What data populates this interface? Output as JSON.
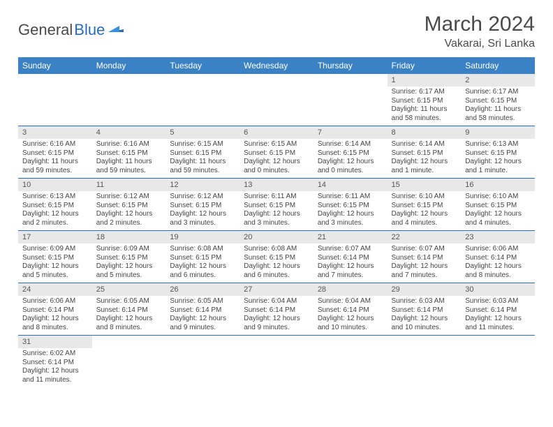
{
  "logo": {
    "text1": "General",
    "text2": "Blue"
  },
  "title": "March 2024",
  "location": "Vakarai, Sri Lanka",
  "colors": {
    "header_bg": "#3b82c4",
    "header_text": "#ffffff",
    "daynum_bg": "#e8e8e8",
    "row_border": "#2a6db5",
    "logo_gray": "#4a4a4a",
    "logo_blue": "#2a6db5",
    "body_text": "#444444"
  },
  "typography": {
    "title_fontsize": 30,
    "location_fontsize": 16,
    "dayheader_fontsize": 12,
    "daynum_fontsize": 11,
    "content_fontsize": 10
  },
  "day_headers": [
    "Sunday",
    "Monday",
    "Tuesday",
    "Wednesday",
    "Thursday",
    "Friday",
    "Saturday"
  ],
  "weeks": [
    [
      {
        "n": "",
        "sr": "",
        "ss": "",
        "dl": ""
      },
      {
        "n": "",
        "sr": "",
        "ss": "",
        "dl": ""
      },
      {
        "n": "",
        "sr": "",
        "ss": "",
        "dl": ""
      },
      {
        "n": "",
        "sr": "",
        "ss": "",
        "dl": ""
      },
      {
        "n": "",
        "sr": "",
        "ss": "",
        "dl": ""
      },
      {
        "n": "1",
        "sr": "Sunrise: 6:17 AM",
        "ss": "Sunset: 6:15 PM",
        "dl": "Daylight: 11 hours and 58 minutes."
      },
      {
        "n": "2",
        "sr": "Sunrise: 6:17 AM",
        "ss": "Sunset: 6:15 PM",
        "dl": "Daylight: 11 hours and 58 minutes."
      }
    ],
    [
      {
        "n": "3",
        "sr": "Sunrise: 6:16 AM",
        "ss": "Sunset: 6:15 PM",
        "dl": "Daylight: 11 hours and 59 minutes."
      },
      {
        "n": "4",
        "sr": "Sunrise: 6:16 AM",
        "ss": "Sunset: 6:15 PM",
        "dl": "Daylight: 11 hours and 59 minutes."
      },
      {
        "n": "5",
        "sr": "Sunrise: 6:15 AM",
        "ss": "Sunset: 6:15 PM",
        "dl": "Daylight: 11 hours and 59 minutes."
      },
      {
        "n": "6",
        "sr": "Sunrise: 6:15 AM",
        "ss": "Sunset: 6:15 PM",
        "dl": "Daylight: 12 hours and 0 minutes."
      },
      {
        "n": "7",
        "sr": "Sunrise: 6:14 AM",
        "ss": "Sunset: 6:15 PM",
        "dl": "Daylight: 12 hours and 0 minutes."
      },
      {
        "n": "8",
        "sr": "Sunrise: 6:14 AM",
        "ss": "Sunset: 6:15 PM",
        "dl": "Daylight: 12 hours and 1 minute."
      },
      {
        "n": "9",
        "sr": "Sunrise: 6:13 AM",
        "ss": "Sunset: 6:15 PM",
        "dl": "Daylight: 12 hours and 1 minute."
      }
    ],
    [
      {
        "n": "10",
        "sr": "Sunrise: 6:13 AM",
        "ss": "Sunset: 6:15 PM",
        "dl": "Daylight: 12 hours and 2 minutes."
      },
      {
        "n": "11",
        "sr": "Sunrise: 6:12 AM",
        "ss": "Sunset: 6:15 PM",
        "dl": "Daylight: 12 hours and 2 minutes."
      },
      {
        "n": "12",
        "sr": "Sunrise: 6:12 AM",
        "ss": "Sunset: 6:15 PM",
        "dl": "Daylight: 12 hours and 3 minutes."
      },
      {
        "n": "13",
        "sr": "Sunrise: 6:11 AM",
        "ss": "Sunset: 6:15 PM",
        "dl": "Daylight: 12 hours and 3 minutes."
      },
      {
        "n": "14",
        "sr": "Sunrise: 6:11 AM",
        "ss": "Sunset: 6:15 PM",
        "dl": "Daylight: 12 hours and 3 minutes."
      },
      {
        "n": "15",
        "sr": "Sunrise: 6:10 AM",
        "ss": "Sunset: 6:15 PM",
        "dl": "Daylight: 12 hours and 4 minutes."
      },
      {
        "n": "16",
        "sr": "Sunrise: 6:10 AM",
        "ss": "Sunset: 6:15 PM",
        "dl": "Daylight: 12 hours and 4 minutes."
      }
    ],
    [
      {
        "n": "17",
        "sr": "Sunrise: 6:09 AM",
        "ss": "Sunset: 6:15 PM",
        "dl": "Daylight: 12 hours and 5 minutes."
      },
      {
        "n": "18",
        "sr": "Sunrise: 6:09 AM",
        "ss": "Sunset: 6:15 PM",
        "dl": "Daylight: 12 hours and 5 minutes."
      },
      {
        "n": "19",
        "sr": "Sunrise: 6:08 AM",
        "ss": "Sunset: 6:15 PM",
        "dl": "Daylight: 12 hours and 6 minutes."
      },
      {
        "n": "20",
        "sr": "Sunrise: 6:08 AM",
        "ss": "Sunset: 6:15 PM",
        "dl": "Daylight: 12 hours and 6 minutes."
      },
      {
        "n": "21",
        "sr": "Sunrise: 6:07 AM",
        "ss": "Sunset: 6:14 PM",
        "dl": "Daylight: 12 hours and 7 minutes."
      },
      {
        "n": "22",
        "sr": "Sunrise: 6:07 AM",
        "ss": "Sunset: 6:14 PM",
        "dl": "Daylight: 12 hours and 7 minutes."
      },
      {
        "n": "23",
        "sr": "Sunrise: 6:06 AM",
        "ss": "Sunset: 6:14 PM",
        "dl": "Daylight: 12 hours and 8 minutes."
      }
    ],
    [
      {
        "n": "24",
        "sr": "Sunrise: 6:06 AM",
        "ss": "Sunset: 6:14 PM",
        "dl": "Daylight: 12 hours and 8 minutes."
      },
      {
        "n": "25",
        "sr": "Sunrise: 6:05 AM",
        "ss": "Sunset: 6:14 PM",
        "dl": "Daylight: 12 hours and 8 minutes."
      },
      {
        "n": "26",
        "sr": "Sunrise: 6:05 AM",
        "ss": "Sunset: 6:14 PM",
        "dl": "Daylight: 12 hours and 9 minutes."
      },
      {
        "n": "27",
        "sr": "Sunrise: 6:04 AM",
        "ss": "Sunset: 6:14 PM",
        "dl": "Daylight: 12 hours and 9 minutes."
      },
      {
        "n": "28",
        "sr": "Sunrise: 6:04 AM",
        "ss": "Sunset: 6:14 PM",
        "dl": "Daylight: 12 hours and 10 minutes."
      },
      {
        "n": "29",
        "sr": "Sunrise: 6:03 AM",
        "ss": "Sunset: 6:14 PM",
        "dl": "Daylight: 12 hours and 10 minutes."
      },
      {
        "n": "30",
        "sr": "Sunrise: 6:03 AM",
        "ss": "Sunset: 6:14 PM",
        "dl": "Daylight: 12 hours and 11 minutes."
      }
    ],
    [
      {
        "n": "31",
        "sr": "Sunrise: 6:02 AM",
        "ss": "Sunset: 6:14 PM",
        "dl": "Daylight: 12 hours and 11 minutes."
      },
      {
        "n": "",
        "sr": "",
        "ss": "",
        "dl": ""
      },
      {
        "n": "",
        "sr": "",
        "ss": "",
        "dl": ""
      },
      {
        "n": "",
        "sr": "",
        "ss": "",
        "dl": ""
      },
      {
        "n": "",
        "sr": "",
        "ss": "",
        "dl": ""
      },
      {
        "n": "",
        "sr": "",
        "ss": "",
        "dl": ""
      },
      {
        "n": "",
        "sr": "",
        "ss": "",
        "dl": ""
      }
    ]
  ]
}
